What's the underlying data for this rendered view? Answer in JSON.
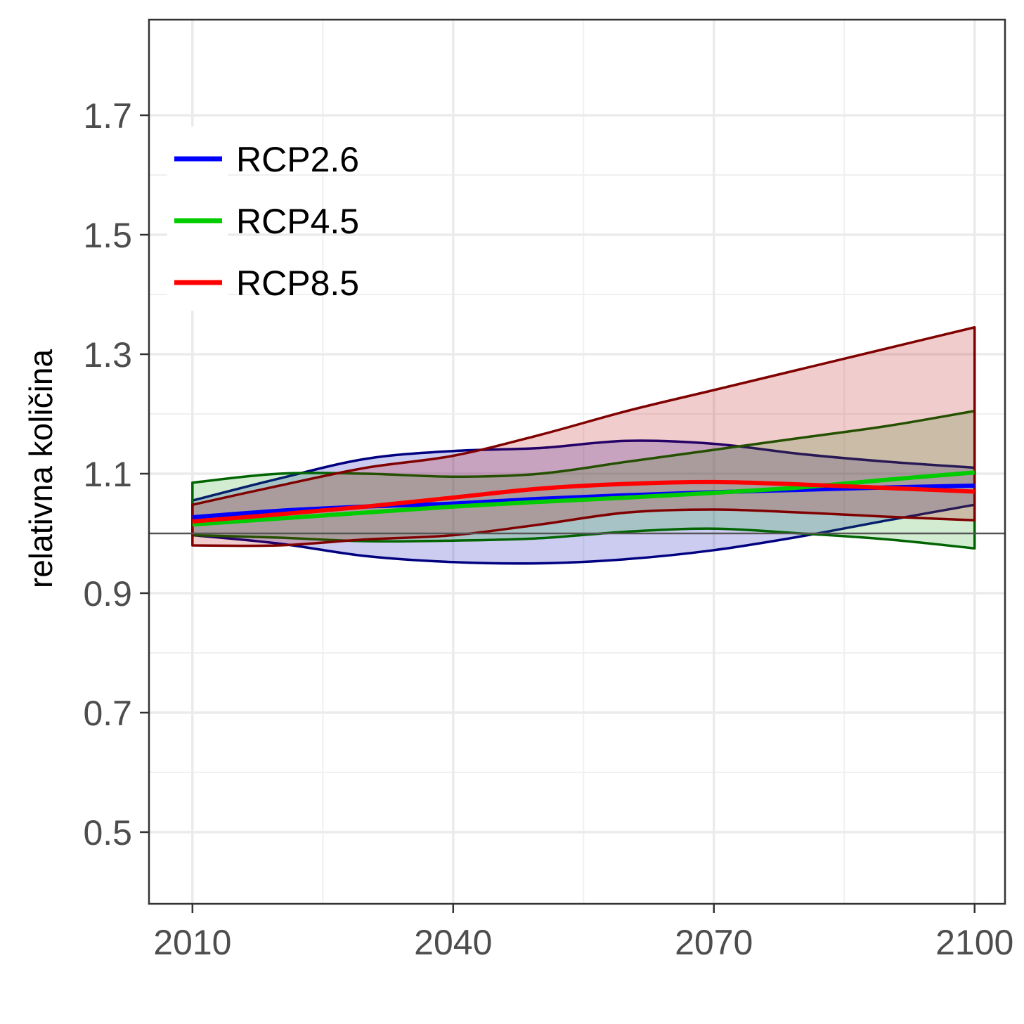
{
  "chart_data": {
    "type": "line",
    "title": "",
    "xlabel": "",
    "ylabel": "relativna količina",
    "xlim": [
      2005,
      2103.5
    ],
    "ylim": [
      0.38,
      1.86
    ],
    "x_ticks": [
      2010,
      2040,
      2070,
      2100
    ],
    "x_tick_labels": [
      "2010",
      "2040",
      "2070",
      "2100"
    ],
    "y_ticks": [
      0.5,
      0.7,
      0.9,
      1.1,
      1.3,
      1.5,
      1.7
    ],
    "y_tick_labels": [
      "0.5",
      "0.7",
      "0.9",
      "1.1",
      "1.3",
      "1.5",
      "1.7"
    ],
    "grid": true,
    "reference_line": 1.0,
    "legend_position": "top-left",
    "x": [
      2010,
      2020,
      2030,
      2040,
      2050,
      2060,
      2070,
      2080,
      2090,
      2100
    ],
    "series": [
      {
        "name": "RCP2.6",
        "color": "#0000ff",
        "band_fill": "#0000b3",
        "band_edge": "#000080",
        "mean": [
          1.027,
          1.038,
          1.045,
          1.05,
          1.058,
          1.064,
          1.069,
          1.073,
          1.077,
          1.08
        ],
        "upper": [
          1.055,
          1.092,
          1.125,
          1.138,
          1.143,
          1.155,
          1.15,
          1.133,
          1.12,
          1.11
        ],
        "lower": [
          0.997,
          0.983,
          0.962,
          0.952,
          0.95,
          0.957,
          0.972,
          0.995,
          1.022,
          1.048
        ]
      },
      {
        "name": "RCP4.5",
        "color": "#00cc00",
        "band_fill": "#1a9e1a",
        "band_edge": "#006400",
        "mean": [
          1.015,
          1.025,
          1.035,
          1.045,
          1.053,
          1.06,
          1.068,
          1.077,
          1.09,
          1.102
        ],
        "upper": [
          1.085,
          1.1,
          1.1,
          1.095,
          1.1,
          1.12,
          1.14,
          1.16,
          1.18,
          1.205
        ],
        "lower": [
          0.997,
          0.993,
          0.987,
          0.988,
          0.992,
          1.003,
          1.008,
          1.0,
          0.99,
          0.975
        ]
      },
      {
        "name": "RCP8.5",
        "color": "#ff0000",
        "band_fill": "#b30000",
        "band_edge": "#800000",
        "mean": [
          1.02,
          1.032,
          1.045,
          1.06,
          1.075,
          1.083,
          1.086,
          1.082,
          1.076,
          1.07
        ],
        "upper": [
          1.048,
          1.08,
          1.11,
          1.13,
          1.165,
          1.205,
          1.24,
          1.275,
          1.31,
          1.345
        ],
        "lower": [
          0.98,
          0.98,
          0.99,
          0.997,
          1.015,
          1.035,
          1.04,
          1.035,
          1.028,
          1.022
        ]
      }
    ]
  }
}
